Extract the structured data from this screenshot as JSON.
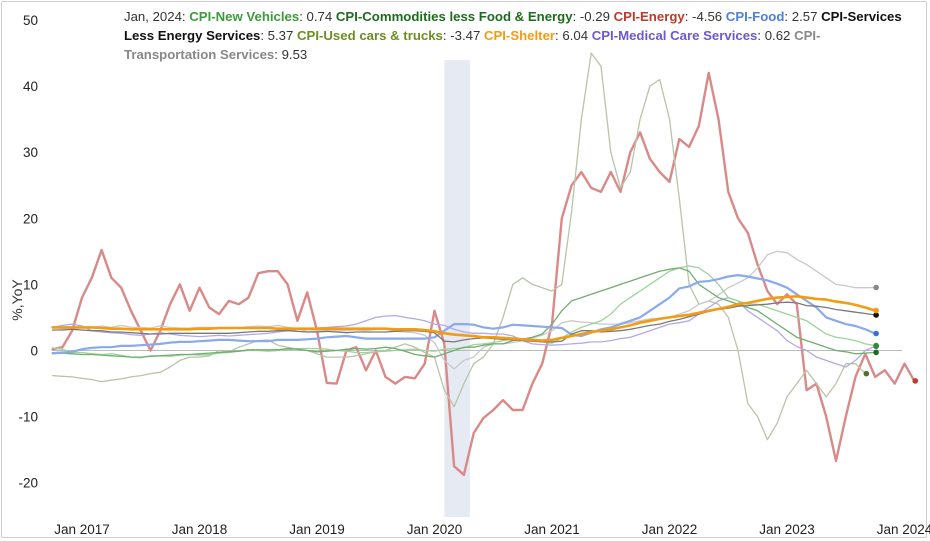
{
  "chart_data": {
    "type": "line",
    "title": "",
    "xlabel": "",
    "ylabel": "%,YoY",
    "ylim": [
      -25,
      50
    ],
    "yticks": [
      50,
      40,
      30,
      20,
      10,
      0,
      -10,
      -20
    ],
    "xticks": [
      "Jan 2017",
      "Jan 2018",
      "Jan 2019",
      "Jan 2020",
      "Jan 2021",
      "Jan 2022",
      "Jan 2023",
      "Jan 2024"
    ],
    "recession_shading": {
      "start": "2020-02",
      "end": "2020-04"
    },
    "legend": {
      "date": "Jan, 2024",
      "entries": [
        {
          "name": "CPI-New Vehicles",
          "value": "0.74",
          "color": "#3d9a3d"
        },
        {
          "name": "CPI-Commodities less Food & Energy",
          "value": "-0.29",
          "color": "#1e6b1e"
        },
        {
          "name": "CPI-Energy",
          "value": "-4.56",
          "color": "#c0392b"
        },
        {
          "name": "CPI-Food",
          "value": "2.57",
          "color": "#4e7fd9"
        },
        {
          "name": "CPI-Services Less Energy Services",
          "value": "5.37",
          "color": "#111111"
        },
        {
          "name": "CPI-Used cars & trucks",
          "value": "-3.47",
          "color": "#6b8e23"
        },
        {
          "name": "CPI-Shelter",
          "value": "6.04",
          "color": "#f39c12"
        },
        {
          "name": "CPI-Medical Care Services",
          "value": "0.62",
          "color": "#6a5acd"
        },
        {
          "name": "CPI-Transportation Services",
          "value": "9.53",
          "color": "#888888"
        }
      ]
    },
    "x_start": "2016-10",
    "series": [
      {
        "name": "CPI-Energy",
        "color": "#d98a88",
        "width": 2.4,
        "dot_color": "#c0392b",
        "values": [
          0.2,
          0.5,
          3,
          8,
          11,
          15.2,
          11,
          9.5,
          6,
          3,
          0,
          3,
          7,
          10,
          6,
          9.5,
          6.5,
          5.5,
          7.5,
          7,
          8,
          11.7,
          12,
          12,
          10,
          4.5,
          8.8,
          3,
          -4.9,
          -5,
          0,
          0.5,
          -3,
          0,
          -4,
          -5,
          -4,
          -4.2,
          -2,
          6,
          1,
          -17.5,
          -18.8,
          -12.5,
          -10.2,
          -9,
          -7.5,
          -9,
          -9,
          -5,
          -2,
          4,
          20,
          25,
          27,
          24.6,
          24,
          27,
          24,
          30,
          33,
          29,
          27,
          25.5,
          32,
          30.8,
          34,
          42,
          35,
          24,
          20,
          17.8,
          13,
          9,
          7,
          8.5,
          7,
          -6,
          -5,
          -10,
          -16.7,
          -10,
          -4,
          -0.5,
          -4,
          -3,
          -5,
          -2,
          -4.6
        ]
      },
      {
        "name": "CPI-Used cars & trucks",
        "color": "#b8c4a8",
        "width": 1.3,
        "dot_color": "#556b2f",
        "values": [
          -3.8,
          -3.9,
          -4,
          -4.2,
          -4.4,
          -4.7,
          -4.5,
          -4.3,
          -4,
          -3.8,
          -3.5,
          -3.3,
          -2.5,
          -1.5,
          -1,
          -1,
          -0.8,
          0,
          -0.2,
          0.5,
          1,
          1.5,
          1.6,
          0.8,
          0.5,
          0.2,
          0,
          -0.5,
          -1,
          -1,
          -1,
          -0.8,
          -0.5,
          -0.2,
          0,
          0.5,
          1,
          0.5,
          -0.3,
          -1,
          -6,
          -8.5,
          -5,
          -2,
          -1,
          1,
          5,
          10,
          11,
          10,
          9.5,
          9,
          10,
          21,
          35,
          45,
          43,
          30,
          24.6,
          27,
          35,
          40,
          41,
          35,
          23,
          10,
          7,
          7.5,
          7,
          5,
          0,
          -8,
          -10,
          -13.5,
          -11,
          -7,
          -5,
          -3,
          -5,
          -7,
          -5,
          -2,
          -2,
          -3.5
        ]
      },
      {
        "name": "CPI-Transportation Services",
        "color": "#c9c9c9",
        "width": 1.3,
        "dot_color": "#888888",
        "values": [
          3.5,
          3.3,
          3.3,
          3.5,
          3.5,
          3.7,
          3.5,
          3.8,
          3.5,
          3.5,
          3.4,
          3.7,
          3.5,
          3.4,
          3.4,
          3.5,
          3.5,
          3.4,
          3.3,
          3.4,
          3.6,
          3.7,
          3.6,
          3.8,
          3.5,
          3.3,
          2.9,
          3,
          3,
          3,
          3,
          3.1,
          3,
          3.2,
          3.2,
          2.9,
          2.8,
          2.7,
          2.3,
          1.2,
          -1.5,
          -2.8,
          -1.5,
          -1,
          0.5,
          1,
          1,
          1.2,
          1.5,
          1.9,
          2.3,
          3,
          4.2,
          4.5,
          4.3,
          4.2,
          4,
          4,
          4,
          4.2,
          4.5,
          4.8,
          4.8,
          5,
          5.5,
          6,
          7,
          7.5,
          8.4,
          9.5,
          10.2,
          11,
          12.5,
          14.5,
          15,
          14.8,
          13.8,
          13,
          12,
          11,
          10,
          9.8,
          9.5,
          9.5,
          9.53
        ]
      },
      {
        "name": "CPI-Medical Care Services",
        "color": "#b3a9e6",
        "width": 1.3,
        "dot_color": "#6a5acd",
        "values": [
          3.5,
          3.8,
          4,
          3.7,
          3,
          2.8,
          2.7,
          2.6,
          2.4,
          2.3,
          2.5,
          2.7,
          2.5,
          2.3,
          2.2,
          2.1,
          2.2,
          2.3,
          2.2,
          2.3,
          2.4,
          2.5,
          2.6,
          2.8,
          3,
          3.2,
          3.3,
          3.4,
          3.5,
          3.6,
          3.7,
          4,
          4.5,
          5,
          5.2,
          5.3,
          5,
          4.8,
          4.5,
          4,
          3.8,
          3.2,
          2.8,
          2.6,
          2.6,
          2.5,
          2.5,
          2.2,
          1.5,
          1,
          0.9,
          0.8,
          0.9,
          1,
          1.1,
          1.3,
          1.3,
          1.5,
          1.8,
          2,
          2.5,
          3,
          3.5,
          4,
          4.2,
          4.5,
          5.5,
          6.5,
          7.5,
          8,
          7.5,
          6,
          5,
          4,
          3,
          1.5,
          0.6,
          0,
          -1,
          -1.5,
          -2,
          -2.5,
          -1.5,
          0,
          0.62
        ]
      },
      {
        "name": "CPI-New Vehicles",
        "color": "#9dd49d",
        "width": 1.3,
        "dot_color": "#2e8b2e",
        "values": [
          0.4,
          0.2,
          -0.3,
          -0.3,
          -0.5,
          -0.6,
          -0.5,
          -0.7,
          -1,
          -1.1,
          -0.8,
          -0.8,
          -0.9,
          -0.7,
          -0.6,
          -0.7,
          -0.6,
          -0.4,
          -0.3,
          -0.1,
          0,
          0,
          -0.1,
          0,
          0.1,
          0.3,
          0.3,
          0.3,
          0.2,
          0,
          -0.1,
          -0.3,
          -0.3,
          -0.2,
          -0.1,
          0,
          0.1,
          0.2,
          0,
          -0.1,
          0.2,
          0.3,
          0.4,
          0.9,
          1,
          1.2,
          1.5,
          1.8,
          1.6,
          1.5,
          1.3,
          1.1,
          1.9,
          2.8,
          3.5,
          4,
          4.5,
          5.5,
          7,
          8,
          9,
          10,
          11,
          12,
          12.5,
          12.8,
          12.5,
          11.5,
          10,
          8,
          7.5,
          7,
          7,
          6.5,
          6,
          5.5,
          5,
          4.5,
          3.5,
          2.5,
          2,
          1.8,
          1.5,
          1,
          0.74
        ]
      },
      {
        "name": "CPI-Commodities less Food & Energy",
        "color": "#6fae6f",
        "width": 1.3,
        "dot_color": "#1e6b1e",
        "values": [
          -0.5,
          -0.4,
          -0.5,
          -0.6,
          -0.6,
          -0.7,
          -0.8,
          -0.9,
          -1,
          -1,
          -0.9,
          -0.8,
          -0.7,
          -0.6,
          -0.6,
          -0.5,
          -0.4,
          -0.3,
          -0.2,
          -0.1,
          0.1,
          0.1,
          0.1,
          0.1,
          0.3,
          0.2,
          0,
          -0.2,
          -0.1,
          0,
          0.2,
          0.3,
          0.2,
          0.3,
          0.5,
          0.3,
          -0.1,
          -0.6,
          -0.8,
          -1,
          -0.5,
          0,
          0.5,
          0.5,
          0.8,
          1,
          1,
          1.5,
          1.7,
          2,
          2.5,
          4,
          6,
          7.5,
          8,
          8.5,
          9,
          9.5,
          10,
          10.5,
          11,
          11.5,
          12,
          12.3,
          12.5,
          12,
          10,
          9,
          8,
          7.5,
          7,
          6.5,
          6,
          5,
          4,
          3,
          2,
          1.5,
          1,
          0.5,
          0,
          -0.2,
          -0.5,
          -0.4,
          -0.29
        ]
      },
      {
        "name": "CPI-Food",
        "color": "#8aa9ee",
        "width": 2.2,
        "dot_color": "#3a6fd8",
        "values": [
          -0.4,
          -0.3,
          -0.2,
          0.2,
          0.4,
          0.5,
          0.5,
          0.7,
          0.7,
          0.8,
          0.9,
          1,
          1.2,
          1.3,
          1.3,
          1.4,
          1.5,
          1.6,
          1.6,
          1.5,
          1.4,
          1.4,
          1.4,
          1.6,
          1.6,
          1.6,
          1.7,
          1.8,
          2,
          2.1,
          2.2,
          2,
          1.8,
          1.8,
          1.8,
          1.8,
          1.8,
          1.8,
          1.8,
          2,
          3,
          4,
          4,
          3.9,
          3.5,
          3.3,
          3.5,
          3.9,
          3.8,
          3.7,
          3.6,
          3.5,
          3.4,
          2.4,
          2.2,
          2.7,
          3.2,
          3.5,
          4,
          4.5,
          5,
          6,
          7,
          8,
          9.4,
          9.7,
          10.4,
          10.5,
          10.8,
          11.2,
          11.4,
          11.2,
          10.9,
          10.6,
          10.1,
          9.5,
          8.5,
          7.5,
          6.5,
          5,
          4.5,
          4,
          3.7,
          3.2,
          2.57
        ]
      },
      {
        "name": "CPI-Services Less Energy Services",
        "color": "#7a7a7a",
        "width": 1.3,
        "dot_color": "#111111",
        "values": [
          3.1,
          3.1,
          3.2,
          3.1,
          3.0,
          3.0,
          2.8,
          2.8,
          2.7,
          2.6,
          2.5,
          2.5,
          2.6,
          2.6,
          2.6,
          2.6,
          2.6,
          2.6,
          2.6,
          2.7,
          2.8,
          2.9,
          2.9,
          3,
          3,
          2.9,
          2.8,
          2.8,
          2.9,
          2.8,
          2.7,
          2.8,
          2.8,
          2.8,
          2.8,
          2.9,
          3,
          3,
          2.9,
          2.7,
          1.4,
          1.3,
          1.6,
          1.8,
          1.9,
          1.8,
          1.7,
          1.6,
          1.5,
          1.4,
          1.3,
          1.3,
          1.4,
          2.5,
          3,
          3,
          2.8,
          2.9,
          3,
          3.2,
          3.5,
          3.8,
          4,
          4.4,
          4.7,
          5.1,
          5.5,
          5.9,
          6.2,
          6.4,
          6.7,
          6.8,
          6.9,
          7,
          7.2,
          7.3,
          7.2,
          6.8,
          6.7,
          6.5,
          6.2,
          6.0,
          5.8,
          5.6,
          5.37
        ]
      },
      {
        "name": "CPI-Shelter",
        "color": "#f39c12",
        "width": 2.6,
        "dot_color": "#f39c12",
        "values": [
          3.5,
          3.5,
          3.5,
          3.5,
          3.5,
          3.4,
          3.3,
          3.3,
          3.2,
          3.2,
          3.2,
          3.2,
          3.2,
          3.2,
          3.2,
          3.3,
          3.3,
          3.4,
          3.4,
          3.4,
          3.4,
          3.4,
          3.4,
          3.3,
          3.3,
          3.3,
          3.3,
          3.3,
          3.3,
          3.3,
          3.3,
          3.3,
          3.3,
          3.3,
          3.3,
          3.2,
          3.2,
          3.2,
          3.1,
          2.9,
          2.6,
          2.4,
          2.3,
          2.2,
          2.0,
          2.0,
          1.9,
          1.8,
          1.7,
          1.6,
          1.5,
          1.6,
          1.9,
          2.2,
          2.5,
          2.8,
          3.0,
          3.2,
          3.5,
          3.8,
          4.2,
          4.5,
          4.8,
          5.0,
          5.2,
          5.4,
          5.7,
          6.0,
          6.3,
          6.6,
          7.0,
          7.2,
          7.5,
          7.8,
          8.0,
          8.1,
          8.2,
          8.0,
          7.8,
          7.7,
          7.4,
          7.2,
          6.9,
          6.5,
          6.04
        ]
      }
    ]
  }
}
